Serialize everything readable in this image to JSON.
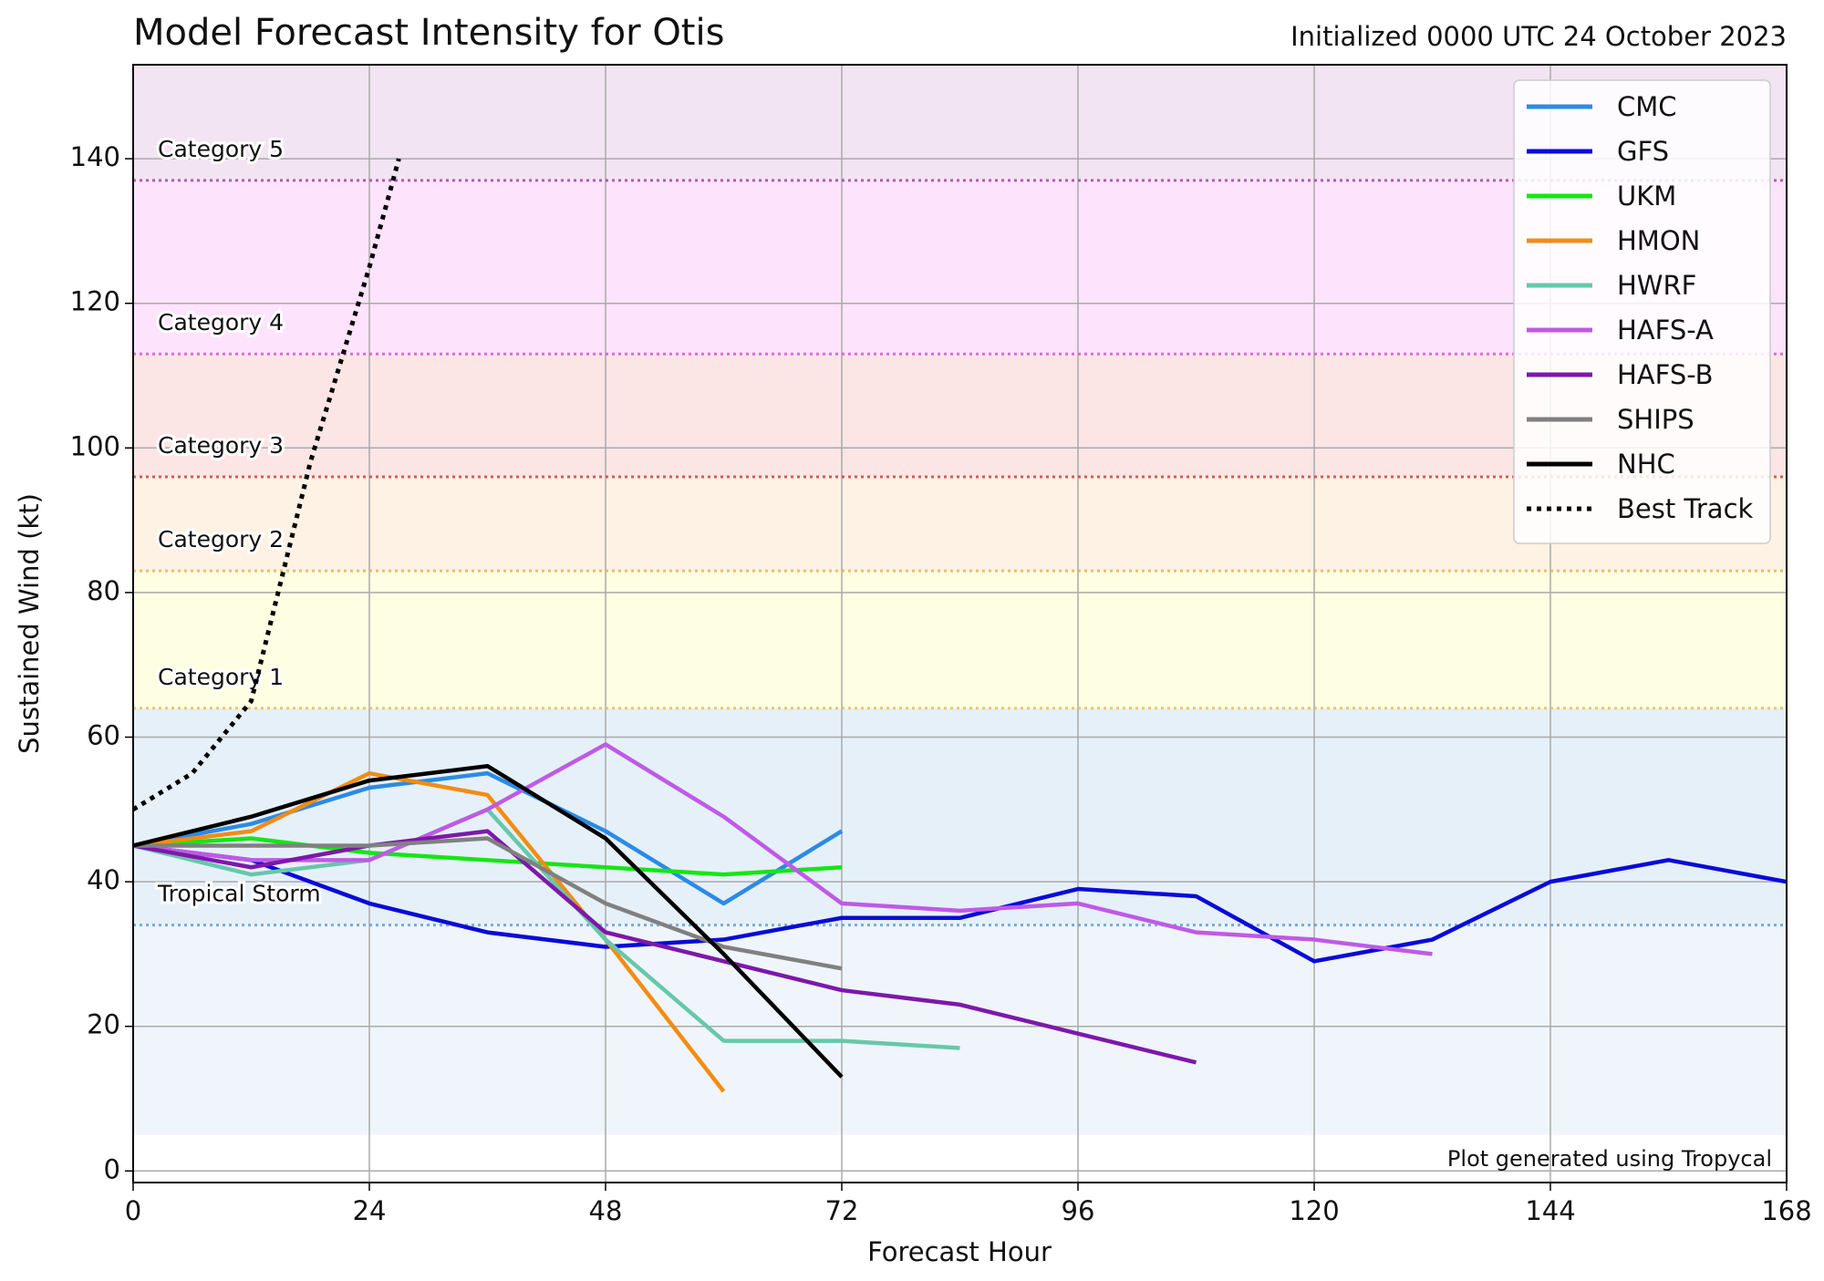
{
  "chart_data": {
    "type": "line",
    "title": "Model Forecast Intensity for Otis",
    "subtitle": "Initialized 0000 UTC 24 October 2023",
    "x_label": "Forecast Hour",
    "y_label": "Sustained Wind (kt)",
    "credit": "Plot generated using Tropycal",
    "xlim": [
      0,
      168
    ],
    "xticks": [
      0,
      24,
      48,
      72,
      96,
      120,
      144,
      168
    ],
    "ylim": [
      -1.6,
      153
    ],
    "yticks": [
      0,
      20,
      40,
      60,
      80,
      100,
      120,
      140
    ],
    "grid": true,
    "legend": "upper right",
    "shading": [
      {
        "from": 5,
        "to": 34,
        "color": "#eff5fa"
      },
      {
        "from": 34,
        "to": 64,
        "color": "#e6f0f9"
      },
      {
        "from": 64,
        "to": 83,
        "color": "#fefee2"
      },
      {
        "from": 83,
        "to": 96,
        "color": "#fdf2e3"
      },
      {
        "from": 96,
        "to": 113,
        "color": "#fbe5e5"
      },
      {
        "from": 113,
        "to": 137,
        "color": "#fee3fc"
      },
      {
        "from": 137,
        "to": 153,
        "color": "#f2e4f2"
      }
    ],
    "thresholds": [
      {
        "label": "Tropical Storm",
        "value": 34,
        "color": "#5a9bd0"
      },
      {
        "label": "Category 1",
        "value": 64,
        "color": "#e2c048"
      },
      {
        "label": "Category 2",
        "value": 83,
        "color": "#e6b04a"
      },
      {
        "label": "Category 3",
        "value": 96,
        "color": "#cc3838"
      },
      {
        "label": "Category 4",
        "value": 113,
        "color": "#d84ad8"
      },
      {
        "label": "Category 5",
        "value": 137,
        "color": "#9c3c9c"
      }
    ],
    "x": [
      0,
      12,
      24,
      36,
      48,
      60,
      72,
      84,
      96,
      108,
      120,
      132,
      144,
      156,
      168
    ],
    "series": [
      {
        "name": "CMC",
        "color": "#2b8be6",
        "values": [
          45,
          48,
          53,
          55,
          47,
          37,
          47,
          null,
          null,
          null,
          null,
          null,
          null,
          null,
          null
        ]
      },
      {
        "name": "GFS",
        "color": "#0a0ad8",
        "values": [
          45,
          43,
          37,
          33,
          31,
          32,
          35,
          35,
          39,
          38,
          29,
          32,
          40,
          43,
          40
        ]
      },
      {
        "name": "UKM",
        "color": "#14e614",
        "values": [
          45,
          46,
          44,
          43,
          42,
          41,
          42,
          null,
          null,
          null,
          null,
          null,
          null,
          null,
          null
        ]
      },
      {
        "name": "HMON",
        "color": "#f28c14",
        "values": [
          45,
          47,
          55,
          52,
          32,
          11,
          null,
          null,
          null,
          null,
          null,
          null,
          null,
          null,
          null
        ]
      },
      {
        "name": "HWRF",
        "color": "#66c8aa",
        "values": [
          45,
          41,
          43,
          50,
          32,
          18,
          18,
          17,
          null,
          null,
          null,
          null,
          null,
          null,
          null
        ]
      },
      {
        "name": "HAFS-A",
        "color": "#bf5ae6",
        "values": [
          45,
          43,
          43,
          50,
          59,
          49,
          37,
          36,
          37,
          33,
          32,
          30,
          null,
          null,
          null
        ]
      },
      {
        "name": "HAFS-B",
        "color": "#7d18aa",
        "values": [
          45,
          42,
          45,
          47,
          33,
          29,
          25,
          23,
          19,
          15,
          null,
          null,
          null,
          null,
          null
        ]
      },
      {
        "name": "SHIPS",
        "color": "#808080",
        "values": [
          45,
          45,
          45,
          46,
          37,
          31,
          28,
          null,
          null,
          null,
          null,
          null,
          null,
          null,
          null
        ]
      },
      {
        "name": "NHC",
        "color": "#000000",
        "values": [
          45,
          49,
          54,
          56,
          46,
          30,
          13,
          null,
          null,
          null,
          null,
          null,
          null,
          null,
          null
        ]
      },
      {
        "name": "Best Track",
        "color": "#000000",
        "dashed": true,
        "x": [
          0,
          6,
          12,
          18,
          24,
          27
        ],
        "values": [
          50,
          55,
          65,
          98,
          125,
          140
        ]
      }
    ]
  }
}
